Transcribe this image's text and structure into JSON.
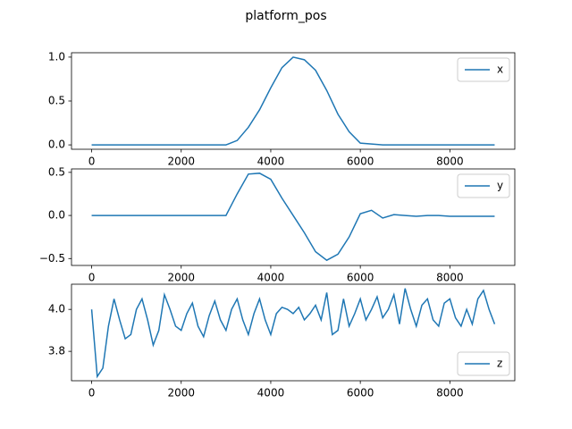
{
  "title": "platform_pos",
  "chart_data": [
    {
      "type": "line",
      "legend": "upper right",
      "x": [
        0,
        250,
        500,
        750,
        1000,
        1250,
        1500,
        1750,
        2000,
        2250,
        2500,
        2750,
        3000,
        3250,
        3500,
        3750,
        4000,
        4250,
        4500,
        4750,
        5000,
        5250,
        5500,
        5750,
        6000,
        6250,
        6500,
        6750,
        7000,
        7250,
        7500,
        7750,
        8000,
        8250,
        8500,
        8750,
        9000
      ],
      "series": [
        {
          "name": "x",
          "color": "#1f77b4",
          "values": [
            0,
            0,
            0,
            0,
            0,
            0,
            0,
            0,
            0,
            0,
            0,
            0,
            0,
            0.05,
            0.2,
            0.4,
            0.65,
            0.88,
            1.0,
            0.97,
            0.85,
            0.62,
            0.35,
            0.15,
            0.02,
            0.01,
            0,
            0,
            0,
            0,
            0,
            0,
            0,
            0,
            0,
            0,
            0
          ]
        }
      ],
      "xlim": [
        -450,
        9450
      ],
      "xticks": [
        0,
        2000,
        4000,
        6000,
        8000
      ],
      "ylim": [
        -0.05,
        1.05
      ],
      "yticks": [
        {
          "value": 0,
          "label": "0.0"
        },
        {
          "value": 0.5,
          "label": "0.5"
        },
        {
          "value": 1,
          "label": "1.0"
        }
      ]
    },
    {
      "type": "line",
      "legend": "upper right",
      "x": [
        0,
        250,
        500,
        750,
        1000,
        1250,
        1500,
        1750,
        2000,
        2250,
        2500,
        2750,
        3000,
        3250,
        3500,
        3750,
        4000,
        4250,
        4500,
        4750,
        5000,
        5250,
        5500,
        5750,
        6000,
        6250,
        6500,
        6750,
        7000,
        7250,
        7500,
        7750,
        8000,
        8250,
        8500,
        8750,
        9000
      ],
      "series": [
        {
          "name": "y",
          "color": "#1f77b4",
          "values": [
            0,
            0,
            0,
            0,
            0,
            0,
            0,
            0,
            0,
            0,
            0,
            0,
            0,
            0.25,
            0.48,
            0.49,
            0.42,
            0.2,
            0.0,
            -0.2,
            -0.42,
            -0.52,
            -0.45,
            -0.25,
            0.02,
            0.06,
            -0.03,
            0.01,
            0,
            -0.01,
            0,
            0,
            -0.01,
            -0.01,
            -0.01,
            -0.01,
            -0.01
          ]
        }
      ],
      "xlim": [
        -450,
        9450
      ],
      "xticks": [
        0,
        2000,
        4000,
        6000,
        8000
      ],
      "ylim": [
        -0.58,
        0.54
      ],
      "yticks": [
        {
          "value": -0.5,
          "label": "−0.5"
        },
        {
          "value": 0,
          "label": "0.0"
        },
        {
          "value": 0.5,
          "label": "0.5"
        }
      ]
    },
    {
      "type": "line",
      "legend": "lower right",
      "x": [
        0,
        125,
        250,
        375,
        500,
        625,
        750,
        875,
        1000,
        1125,
        1250,
        1375,
        1500,
        1625,
        1750,
        1875,
        2000,
        2125,
        2250,
        2375,
        2500,
        2625,
        2750,
        2875,
        3000,
        3125,
        3250,
        3375,
        3500,
        3625,
        3750,
        3875,
        4000,
        4125,
        4250,
        4375,
        4500,
        4625,
        4750,
        4875,
        5000,
        5125,
        5250,
        5375,
        5500,
        5625,
        5750,
        5875,
        6000,
        6125,
        6250,
        6375,
        6500,
        6625,
        6750,
        6875,
        7000,
        7125,
        7250,
        7375,
        7500,
        7625,
        7750,
        7875,
        8000,
        8125,
        8250,
        8375,
        8500,
        8625,
        8750,
        8875,
        9000
      ],
      "series": [
        {
          "name": "z",
          "color": "#1f77b4",
          "values": [
            4.0,
            3.68,
            3.72,
            3.92,
            4.05,
            3.95,
            3.86,
            3.88,
            4.0,
            4.05,
            3.95,
            3.83,
            3.9,
            4.07,
            4.0,
            3.92,
            3.9,
            3.98,
            4.03,
            3.92,
            3.87,
            3.97,
            4.04,
            3.95,
            3.9,
            4.0,
            4.05,
            3.95,
            3.88,
            3.98,
            4.05,
            3.95,
            3.88,
            3.98,
            4.01,
            4.0,
            3.98,
            4.01,
            3.95,
            3.98,
            4.02,
            3.95,
            4.08,
            3.88,
            3.9,
            4.05,
            3.92,
            3.98,
            4.05,
            3.95,
            4.0,
            4.06,
            3.96,
            4.0,
            4.07,
            3.93,
            4.1,
            4.0,
            3.92,
            4.02,
            4.05,
            3.95,
            3.92,
            4.03,
            4.05,
            3.96,
            3.92,
            4.0,
            3.93,
            4.05,
            4.09,
            4.0,
            3.93
          ]
        }
      ],
      "xlim": [
        -450,
        9450
      ],
      "xticks": [
        0,
        2000,
        4000,
        6000,
        8000
      ],
      "ylim": [
        3.66,
        4.12
      ],
      "yticks": [
        3.8,
        {
          "value": 4,
          "label": "4.0"
        }
      ]
    }
  ]
}
